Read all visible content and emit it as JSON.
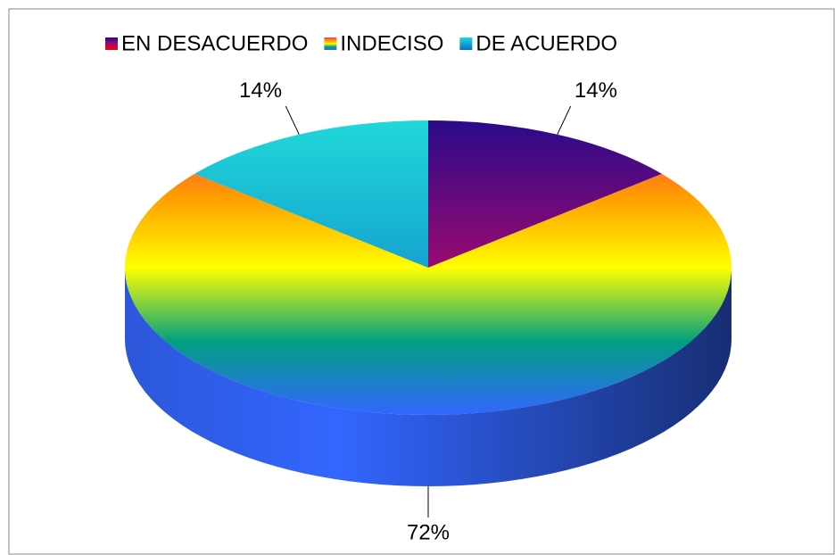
{
  "chart_data": {
    "type": "pie",
    "categories": [
      "EN DESACUERDO",
      "INDECISO",
      "DE ACUERDO"
    ],
    "values": [
      14,
      72,
      14
    ],
    "value_labels": [
      "14%",
      "72%",
      "14%"
    ],
    "colors": [
      [
        "#2a0a8a",
        "#9a0a70",
        "#ff0000"
      ],
      [
        "#ff3366",
        "#ff9900",
        "#ffff00",
        "#00a080",
        "#3366ff"
      ],
      [
        "#20d8d8",
        "#0a70c8"
      ]
    ],
    "legend": "top"
  }
}
